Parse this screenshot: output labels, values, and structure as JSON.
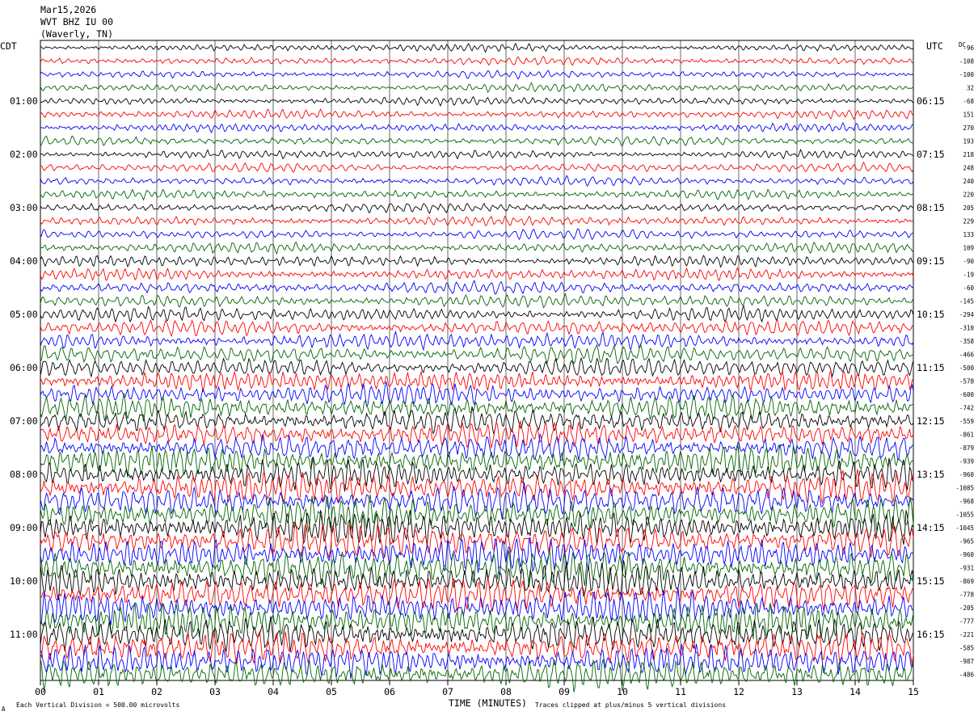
{
  "header": {
    "date": "Mar15,2026",
    "station": "WVT BHZ IU 00",
    "location": "(Waverly, TN)"
  },
  "left_tz": "CDT",
  "right_tz": "UTC",
  "dc_label": "DC",
  "footer": {
    "division": "Each Vertical Division =  500.00 microvolts",
    "clip": "Traces clipped at plus/minus 5 vertical divisions",
    "corner": "A"
  },
  "colors": [
    "#000000",
    "#ff0000",
    "#0000ff",
    "#006400"
  ],
  "chart_data": {
    "type": "line",
    "xlabel": "TIME (MINUTES)",
    "x_ticks": [
      "00",
      "01",
      "02",
      "03",
      "04",
      "05",
      "06",
      "07",
      "08",
      "09",
      "10",
      "11",
      "12",
      "13",
      "14",
      "15"
    ],
    "xlim": [
      0,
      15
    ],
    "left_hour_labels": [
      "01:00",
      "02:00",
      "03:00",
      "04:00",
      "05:00",
      "06:00",
      "07:00",
      "08:00",
      "09:00",
      "10:00",
      "11:00"
    ],
    "right_hour_labels": [
      "06:15",
      "07:15",
      "08:15",
      "09:15",
      "10:15",
      "11:15",
      "12:15",
      "13:15",
      "14:15",
      "15:15",
      "16:15"
    ],
    "dc_offsets": [
      "-96",
      "-108",
      "-100",
      "32",
      "-68",
      "151",
      "270",
      "193",
      "218",
      "248",
      "240",
      "220",
      "205",
      "229",
      "133",
      "109",
      "-90",
      "-19",
      "-60",
      "-145",
      "-294",
      "-310",
      "-358",
      "-466",
      "-500",
      "-578",
      "-600",
      "-742",
      "-559",
      "-861",
      "-879",
      "-939",
      "-960",
      "-1085",
      "-968",
      "-1055",
      "-1045",
      "-965",
      "-960",
      "-931",
      "-869",
      "-778",
      "-205",
      "-777",
      "-221",
      "-585",
      "-987",
      "-486"
    ],
    "trace_amplitude": [
      0.3,
      0.32,
      0.3,
      0.32,
      0.32,
      0.34,
      0.33,
      0.34,
      0.33,
      0.35,
      0.34,
      0.35,
      0.36,
      0.37,
      0.38,
      0.4,
      0.42,
      0.45,
      0.48,
      0.5,
      0.55,
      0.6,
      0.65,
      0.7,
      0.75,
      0.8,
      0.85,
      0.9,
      0.95,
      1.0,
      1.05,
      1.1,
      1.15,
      1.2,
      1.25,
      1.3,
      1.35,
      1.35,
      1.35,
      1.35,
      1.3,
      1.3,
      1.3,
      1.3,
      1.3,
      1.25,
      1.25,
      1.2
    ]
  }
}
